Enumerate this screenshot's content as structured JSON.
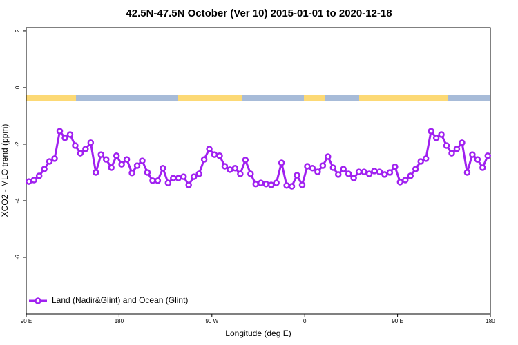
{
  "chart_data": {
    "type": "line",
    "title": "42.5N-47.5N October (Ver 10)   2015-01-01 to 2020-12-18",
    "x_label": "Longitude (deg E)",
    "y_label": "XCO2 - MLO trend (ppm)",
    "xlim": [
      90,
      540
    ],
    "ylim": [
      -8,
      2.12
    ],
    "xticks": [
      {
        "value": 90,
        "label": "90 E"
      },
      180,
      {
        "value": 270,
        "label": "90 W"
      },
      {
        "value": 360,
        "label": "0"
      },
      {
        "value": 450,
        "label": "90 E"
      },
      {
        "value": 540,
        "label": "180"
      }
    ],
    "yticks": [
      2,
      0,
      -2,
      -4,
      -6
    ],
    "legend": "bottom-left",
    "series": [
      {
        "name": "Land (Nadir&Glint) and Ocean (Glint)",
        "color": "#a020f0",
        "x": [
          92.5,
          97.5,
          102.5,
          107.5,
          112.5,
          117.5,
          122.5,
          127.5,
          132.5,
          137.5,
          142.5,
          147.5,
          152.5,
          157.5,
          162.5,
          167.5,
          172.5,
          177.5,
          182.5,
          187.5,
          192.5,
          197.5,
          202.5,
          207.5,
          212.5,
          217.5,
          222.5,
          227.5,
          232.5,
          237.5,
          242.5,
          247.5,
          252.5,
          257.5,
          262.5,
          267.5,
          272.5,
          277.5,
          282.5,
          287.5,
          292.5,
          297.5,
          302.5,
          307.5,
          312.5,
          317.5,
          322.5,
          327.5,
          332.5,
          337.5,
          342.5,
          347.5,
          352.5,
          357.5,
          362.5,
          367.5,
          372.5,
          377.5,
          382.5,
          387.5,
          392.5,
          397.5,
          402.5,
          407.5,
          412.5,
          417.5,
          422.5,
          427.5,
          432.5,
          437.5,
          442.5,
          447.5,
          452.5,
          457.5,
          462.5,
          467.5,
          472.5,
          477.5,
          482.5,
          487.5,
          492.5,
          497.5,
          502.5,
          507.5,
          512.5,
          517.5,
          522.5,
          527.5,
          532.5,
          537.5
        ],
        "values": [
          -3.32,
          -3.27,
          -3.12,
          -2.88,
          -2.61,
          -2.51,
          -1.54,
          -1.78,
          -1.66,
          -2.05,
          -2.32,
          -2.17,
          -1.95,
          -3.0,
          -2.37,
          -2.54,
          -2.83,
          -2.41,
          -2.71,
          -2.54,
          -3.02,
          -2.76,
          -2.59,
          -3.0,
          -3.29,
          -3.29,
          -2.85,
          -3.37,
          -3.2,
          -3.2,
          -3.15,
          -3.44,
          -3.15,
          -3.05,
          -2.54,
          -2.17,
          -2.37,
          -2.41,
          -2.78,
          -2.9,
          -2.85,
          -3.05,
          -2.56,
          -3.05,
          -3.41,
          -3.37,
          -3.41,
          -3.44,
          -3.37,
          -2.66,
          -3.46,
          -3.49,
          -3.1,
          -3.44,
          -2.78,
          -2.85,
          -2.98,
          -2.76,
          -2.44,
          -2.83,
          -3.07,
          -2.88,
          -3.05,
          -3.2,
          -2.98,
          -2.98,
          -3.05,
          -2.95,
          -2.98,
          -3.07,
          -3.0,
          -2.8,
          -3.34,
          -3.27,
          -3.12,
          -2.88,
          -2.61,
          -2.51,
          -1.54,
          -1.78,
          -1.66,
          -2.05,
          -2.32,
          -2.17,
          -1.95,
          -3.0,
          -2.37,
          -2.54,
          -2.83,
          -2.41
        ]
      }
    ]
  }
}
